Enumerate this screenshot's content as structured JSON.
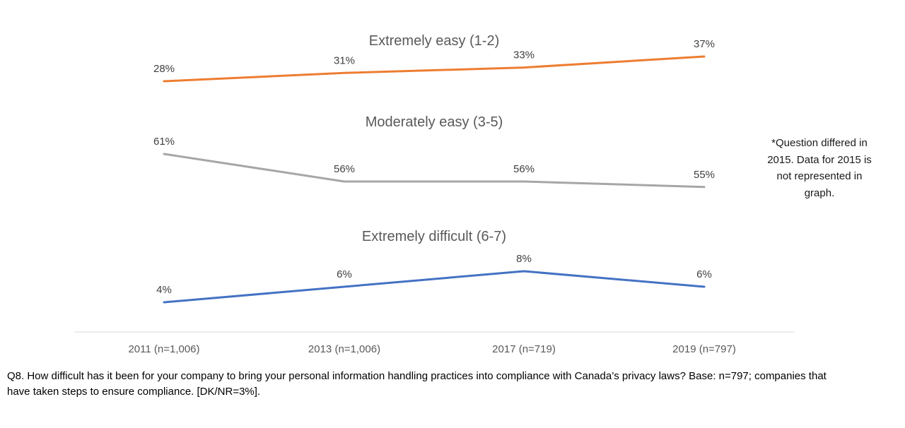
{
  "chart_data": {
    "type": "line",
    "layout_hint": "three stacked panel line charts sharing one x-axis, data labels above points, no y-axis shown, legend replaced by centered series titles above each line",
    "categories": [
      "2011 (n=1,006)",
      "2013 (n=1,006)",
      "2017 (n=719)",
      "2019 (n=797)"
    ],
    "series": [
      {
        "name": "Extremely easy (1-2)",
        "color": "#ED7D31",
        "values": [
          28,
          31,
          33,
          37
        ]
      },
      {
        "name": "Moderately easy (3-5)",
        "color": "#A6A6A6",
        "values": [
          61,
          56,
          56,
          55
        ]
      },
      {
        "name": "Extremely difficult (6-7)",
        "color": "#4472C4",
        "values": [
          4,
          6,
          8,
          6
        ]
      }
    ],
    "value_suffix": "%",
    "axis_line_color": "#D9D9D9",
    "grid": "off",
    "title": "",
    "xlabel": "",
    "ylabel": ""
  },
  "side_note": {
    "lines": [
      "*Question differed in",
      "2015. Data for 2015 is",
      "not represented in",
      "graph."
    ]
  },
  "caption": {
    "lines": [
      "Q8. How difficult has it been for your company to bring your personal information handling practices into compliance with Canada’s privacy laws? Base: n=797; companies that",
      "have taken steps to ensure compliance. [DK/NR=3%]."
    ]
  }
}
